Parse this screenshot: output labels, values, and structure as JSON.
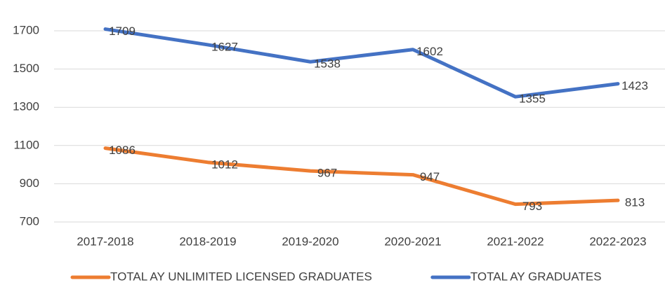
{
  "chart_data": {
    "type": "line",
    "categories": [
      "2017-2018",
      "2018-2019",
      "2019-2020",
      "2020-2021",
      "2021-2022",
      "2022-2023"
    ],
    "series": [
      {
        "name": "TOTAL AY UNLIMITED LICENSED GRADUATES",
        "color": "#ed7d31",
        "values": [
          1086,
          1012,
          967,
          947,
          793,
          813
        ]
      },
      {
        "name": "TOTAL AY GRADUATES",
        "color": "#4472c4",
        "values": [
          1709,
          1627,
          1538,
          1602,
          1355,
          1423
        ]
      }
    ],
    "ylim": [
      700,
      1700
    ],
    "yticks": [
      700,
      900,
      1100,
      1300,
      1500,
      1700
    ],
    "grid": true,
    "legend": "bottom"
  }
}
